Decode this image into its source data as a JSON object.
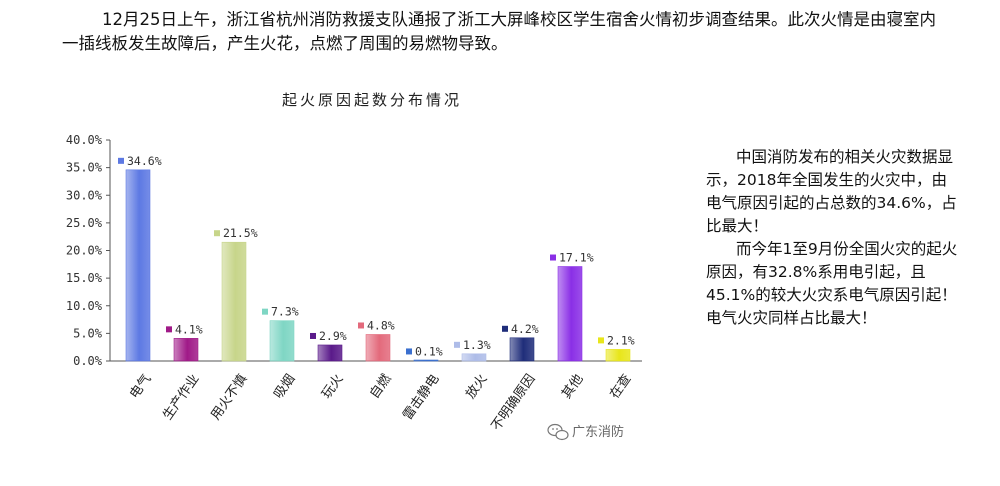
{
  "intro_text": "12月25日上午，浙江省杭州消防救援支队通报了浙工大屏峰校区学生宿舍火情初步调查结果。此次火情是由寝室内一插线板发生故障后，产生火花，点燃了周围的易燃物导致。",
  "side_text": {
    "p1": "中国消防发布的相关火灾数据显示，2018年全国发生的火灾中，由电气原因引起的占总数的34.6%，占比最大！",
    "p2": "而今年1至9月份全国火灾的起火原因，有32.8%系用电引起，且45.1%的较大火灾系电气原因引起！电气火灾同样占比最大！"
  },
  "watermark": {
    "icon": "wechat-icon",
    "text": "广东消防"
  },
  "chart_data": {
    "type": "bar",
    "title": "起火原因起数分布情况",
    "categories": [
      "电气",
      "生产作业",
      "用火不慎",
      "吸烟",
      "玩火",
      "自燃",
      "雷击静电",
      "放火",
      "不明确原因",
      "其他",
      "在查"
    ],
    "values": [
      34.6,
      4.1,
      21.5,
      7.3,
      2.9,
      4.8,
      0.1,
      1.3,
      4.2,
      17.1,
      2.1
    ],
    "value_labels": [
      "34.6%",
      "4.1%",
      "21.5%",
      "7.3%",
      "2.9%",
      "4.8%",
      "0.1%",
      "1.3%",
      "4.2%",
      "17.1%",
      "2.1%"
    ],
    "colors": [
      "#5d79e3",
      "#a01a88",
      "#c7d58a",
      "#7fd6c4",
      "#5a1a8a",
      "#e36a7c",
      "#3a6fcf",
      "#aebce8",
      "#1f2d7a",
      "#8a2fe6",
      "#e8e61a"
    ],
    "yticks": [
      "0.0%",
      "5.0%",
      "10.0%",
      "15.0%",
      "20.0%",
      "25.0%",
      "30.0%",
      "35.0%",
      "40.0%"
    ],
    "ylim": [
      0,
      40
    ],
    "xlabel": "",
    "ylabel": "",
    "grid": false,
    "legend": "none"
  }
}
